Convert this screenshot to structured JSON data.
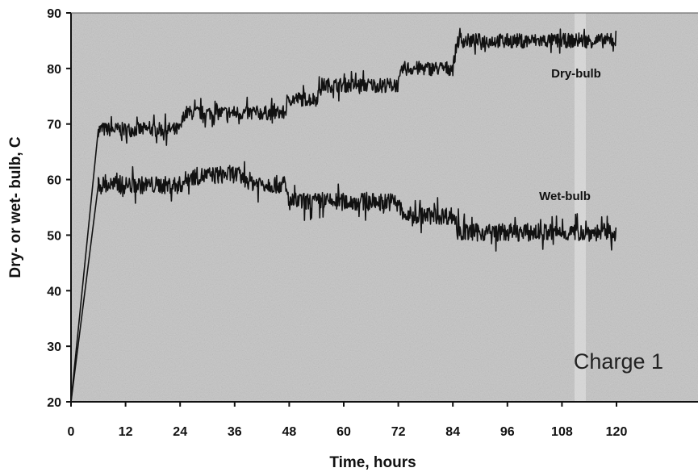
{
  "chart_data": {
    "type": "line",
    "title": "",
    "xlabel": "Time, hours",
    "ylabel": "Dry- or wet- bulb, C",
    "xlim": [
      0,
      120
    ],
    "ylim": [
      20,
      90
    ],
    "xticks": [
      0,
      12,
      24,
      36,
      48,
      60,
      72,
      84,
      96,
      108,
      120
    ],
    "yticks": [
      20,
      30,
      40,
      50,
      60,
      70,
      80,
      90
    ],
    "grid": false,
    "legend": "none",
    "annotation": "Charge 1",
    "colors": {
      "plot_bg": "#c4c4c4",
      "line": "#111111"
    },
    "series": [
      {
        "name": "Dry-bulb",
        "x": [
          0,
          6,
          24,
          25,
          47,
          48,
          54,
          55,
          65,
          66,
          72,
          73,
          84,
          85,
          120
        ],
        "y": [
          20,
          69,
          69,
          72,
          72,
          74.5,
          74.5,
          77,
          77,
          77,
          77,
          80,
          80,
          85,
          85
        ],
        "noise": 1.3
      },
      {
        "name": "Wet-bulb",
        "x": [
          0,
          6,
          24,
          26,
          36,
          40,
          47,
          48,
          72,
          73,
          84,
          86,
          120
        ],
        "y": [
          20,
          59,
          59,
          60.5,
          61,
          59.5,
          59,
          56,
          56,
          53.5,
          53.5,
          50.5,
          50.5
        ],
        "noise": 1.6
      }
    ]
  }
}
